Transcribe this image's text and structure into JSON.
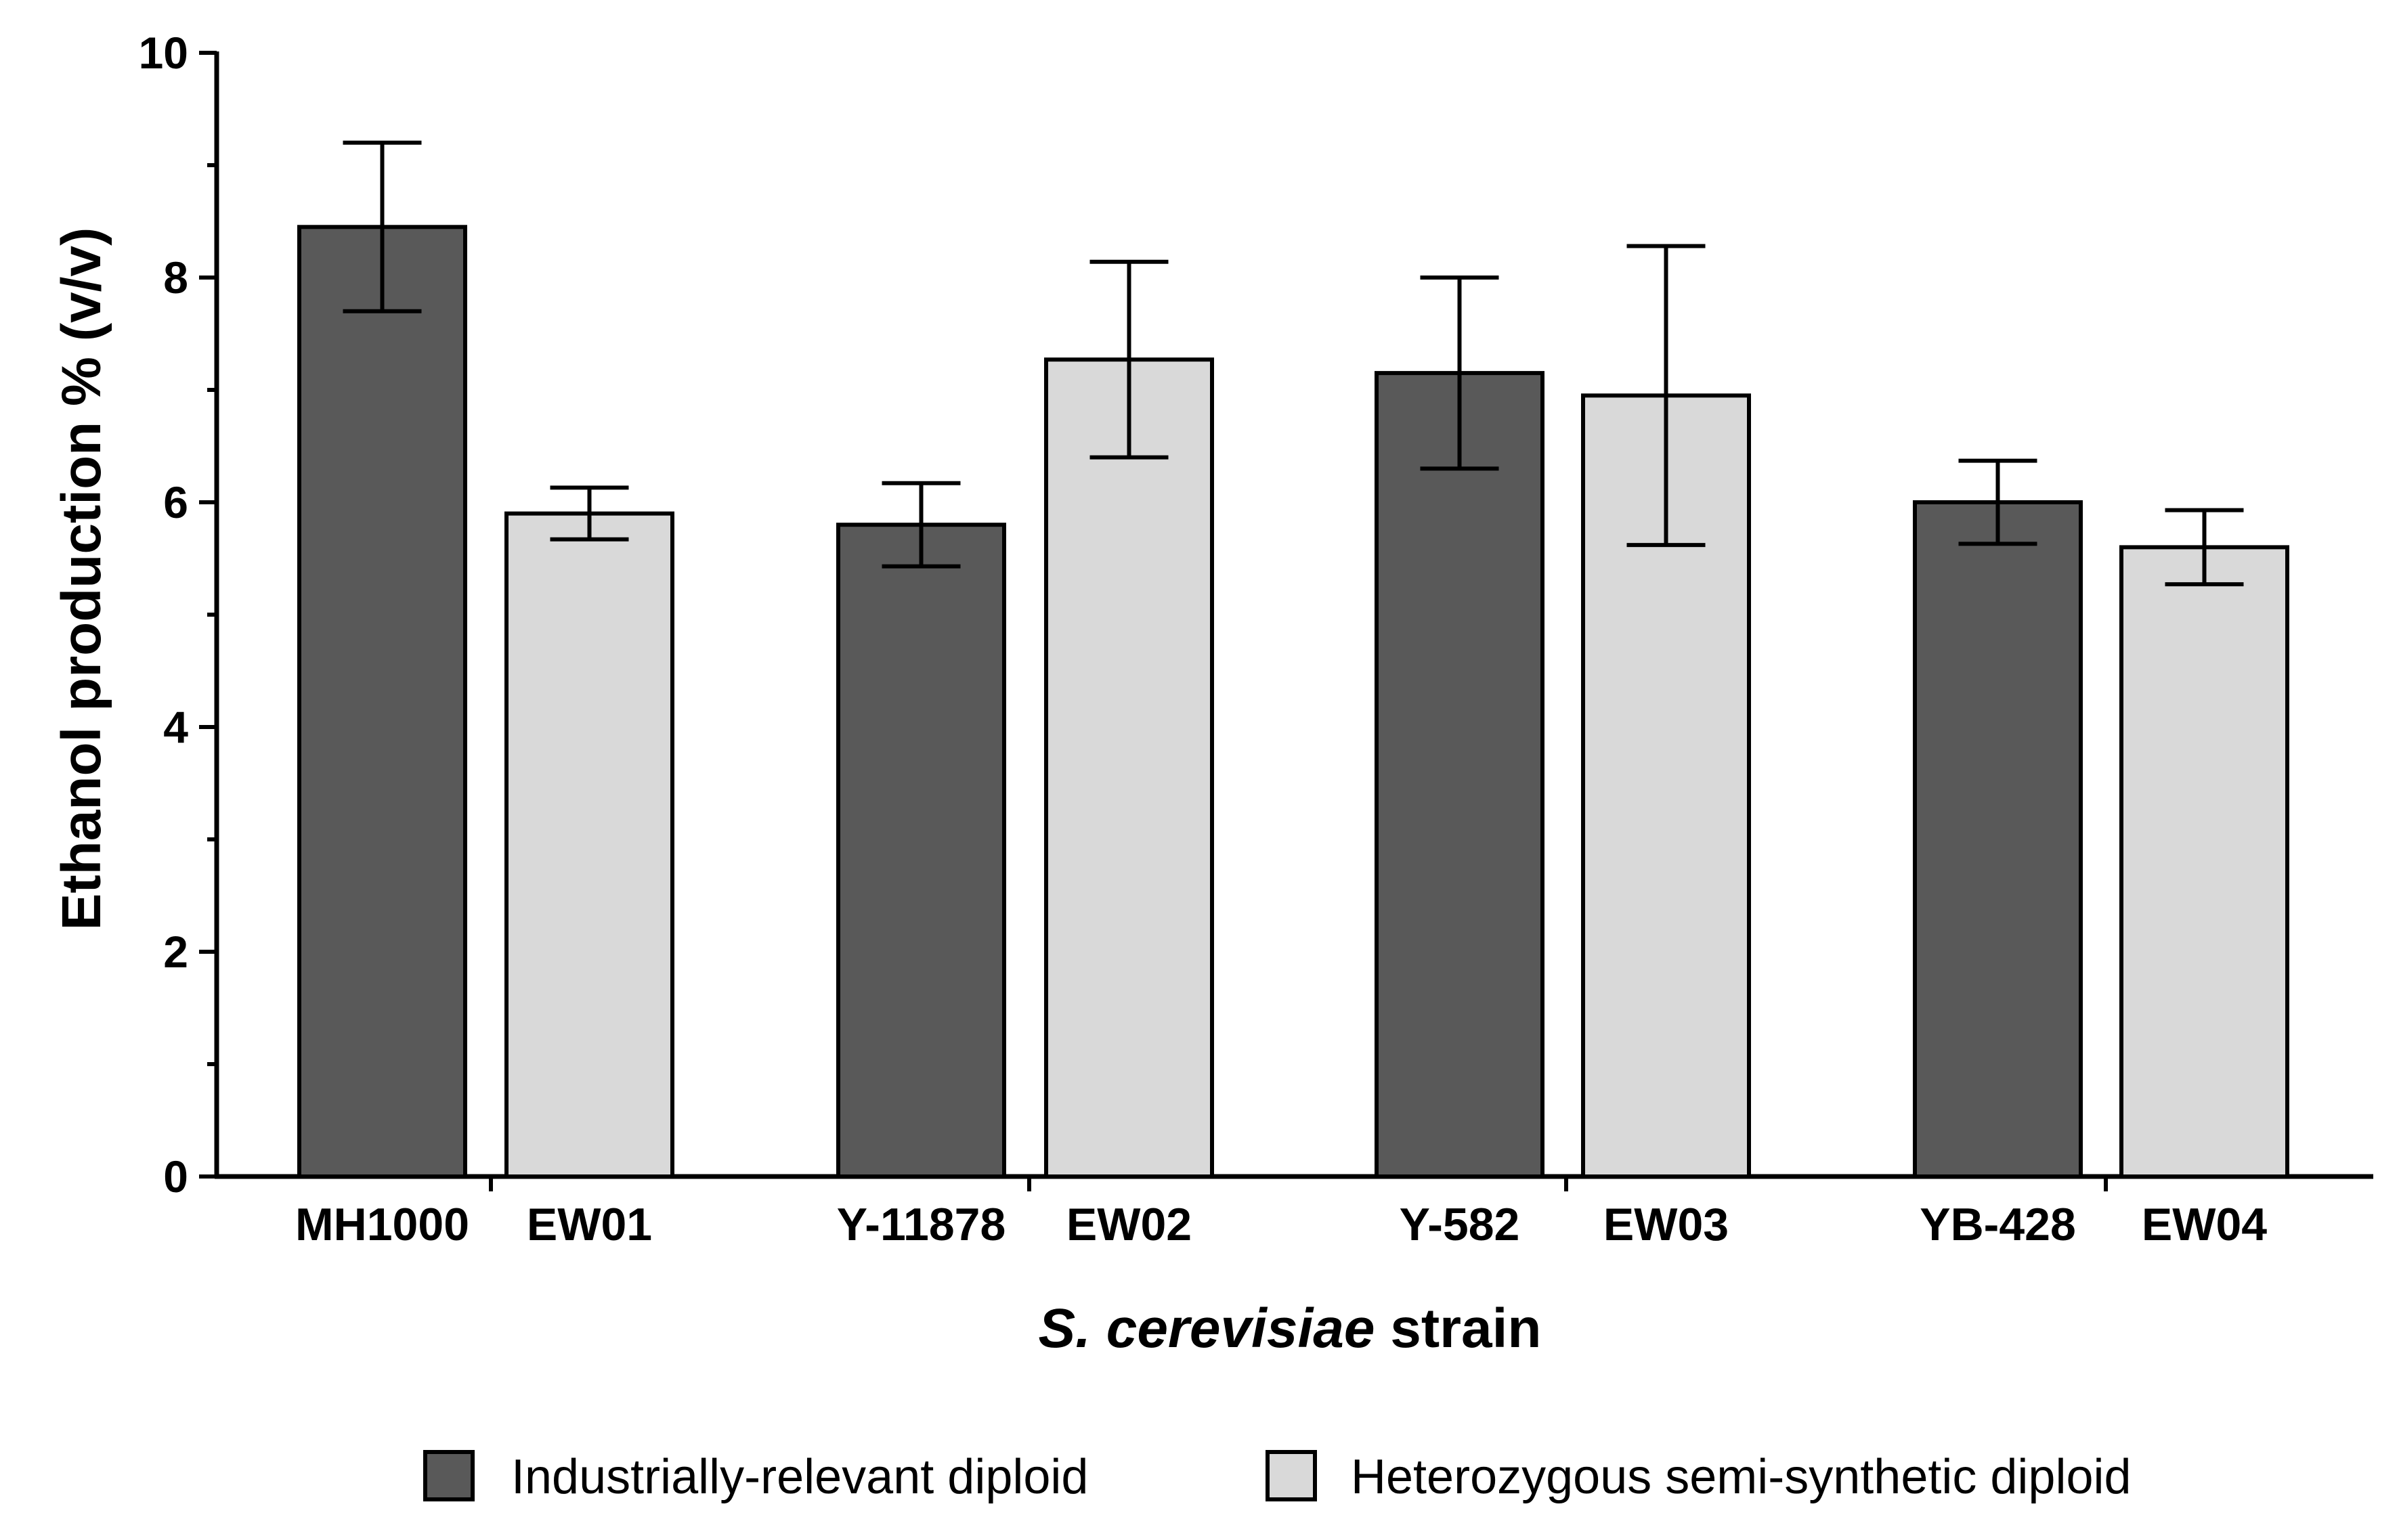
{
  "chart_data": {
    "type": "bar",
    "title": "",
    "ylabel": "Ethanol production % (v/v)",
    "xlabel_italic": "S. cerevisiae",
    "xlabel_rest": " strain",
    "ylim": [
      0,
      10
    ],
    "yticks": [
      "0",
      "2",
      "4",
      "6",
      "8",
      "10"
    ],
    "categories": [
      "MH1000",
      "EW01",
      "Y-11878",
      "EW02",
      "Y-582",
      "EW03",
      "YB-428",
      "EW04"
    ],
    "values": [
      8.45,
      5.9,
      5.8,
      7.27,
      7.15,
      6.95,
      6.0,
      5.6
    ],
    "errors": [
      0.75,
      0.23,
      0.37,
      0.87,
      0.85,
      1.33,
      0.37,
      0.33
    ],
    "series_of_bar": [
      "industrial",
      "semi",
      "industrial",
      "semi",
      "industrial",
      "semi",
      "industrial",
      "semi"
    ],
    "series": [
      {
        "key": "industrial",
        "name": "Industrially-relevant diploid",
        "color": "#595959"
      },
      {
        "key": "semi",
        "name": "Heterozygous semi-synthetic diploid",
        "color": "#d9d9d9"
      }
    ],
    "legend_position": "bottom"
  }
}
